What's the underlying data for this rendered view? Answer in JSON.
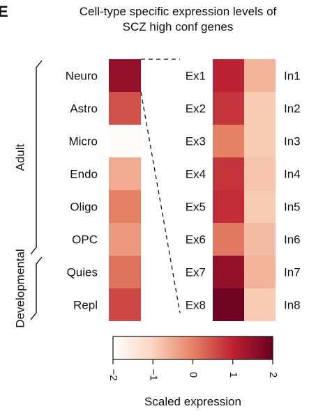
{
  "chart_data": {
    "type": "heatmap",
    "panel_label": "E",
    "title_lines": [
      "Cell-type specific expression levels of",
      "SCZ high conf genes"
    ],
    "left_heatmap": {
      "groups": [
        {
          "label": "Adult",
          "rows": [
            "Neuro",
            "Astro",
            "Micro",
            "Endo",
            "Oligo",
            "OPC"
          ]
        },
        {
          "label": "Developmental",
          "rows": [
            "Quies",
            "Repl"
          ]
        }
      ],
      "rows": [
        "Neuro",
        "Astro",
        "Micro",
        "Endo",
        "Oligo",
        "OPC",
        "Quies",
        "Repl"
      ],
      "values": [
        1.5,
        0.5,
        -1.9,
        -0.5,
        0.0,
        -0.3,
        0.15,
        0.6
      ]
    },
    "right_heatmap": {
      "left_labels": [
        "Ex1",
        "Ex2",
        "Ex3",
        "Ex4",
        "Ex5",
        "Ex6",
        "Ex7",
        "Ex8"
      ],
      "right_labels": [
        "In1",
        "In2",
        "In3",
        "In4",
        "In5",
        "In6",
        "In7",
        "In8"
      ],
      "ex_values": [
        1.0,
        0.8,
        0.0,
        0.8,
        0.9,
        0.1,
        1.5,
        1.9
      ],
      "in_values": [
        -0.6,
        -0.9,
        -0.9,
        -0.8,
        -0.9,
        -0.7,
        -0.6,
        -0.9
      ]
    },
    "colorbar": {
      "label": "Scaled expression",
      "range": [
        -2,
        2
      ],
      "ticks": [
        -2,
        -1,
        0,
        1,
        2
      ],
      "tick_labels": [
        "−2",
        "−1",
        "0",
        "1",
        "2"
      ],
      "colors": [
        "#ffffff",
        "#fad3be",
        "#e58266",
        "#bd2232",
        "#67001f"
      ]
    }
  }
}
